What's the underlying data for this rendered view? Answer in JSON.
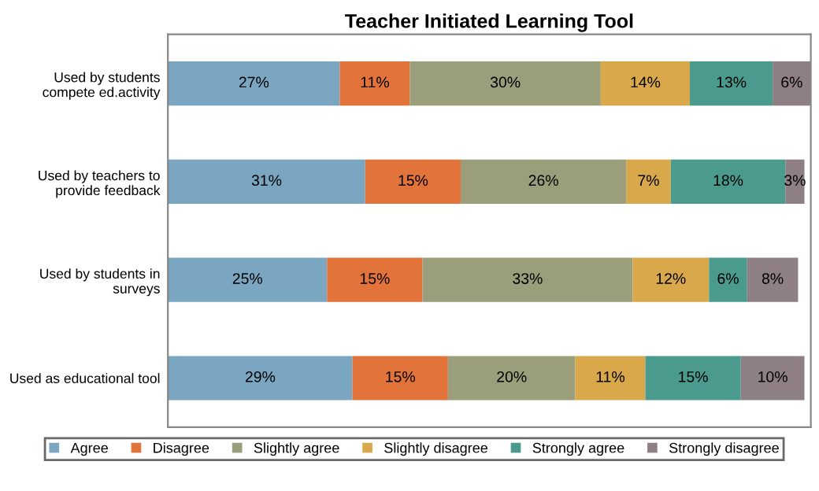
{
  "chart_data": {
    "type": "bar",
    "orientation": "horizontal",
    "stacked": true,
    "title": "Teacher Initiated Learning Tool",
    "categories": [
      "Used by students\ncompete ed.activity",
      "Used by teachers to\nprovide feedback",
      "Used by students in\nsurveys",
      "Used as educational tool"
    ],
    "series": [
      {
        "name": "Agree",
        "color": "#7aa6c2",
        "values": [
          27,
          31,
          25,
          29
        ],
        "value_labels": [
          "27%",
          "31%",
          "25%",
          "29%"
        ]
      },
      {
        "name": "Disagree",
        "color": "#e2733a",
        "values": [
          11,
          15,
          15,
          15
        ],
        "value_labels": [
          "11%",
          "15%",
          "15%",
          "15%"
        ]
      },
      {
        "name": "Slightly agree",
        "color": "#9a9e7a",
        "values": [
          30,
          26,
          33,
          20
        ],
        "value_labels": [
          "30%",
          "26%",
          "33%",
          "20%"
        ]
      },
      {
        "name": "Slightly disagree",
        "color": "#d9a84a",
        "values": [
          14,
          7,
          12,
          11
        ],
        "value_labels": [
          "14%",
          "7%",
          "12%",
          "11%"
        ]
      },
      {
        "name": "Strongly agree",
        "color": "#4a9a8e",
        "values": [
          13,
          18,
          6,
          15
        ],
        "value_labels": [
          "13%",
          "18%",
          "6%",
          "15%"
        ]
      },
      {
        "name": "Strongly disagree",
        "color": "#8e7f84",
        "values": [
          6,
          3,
          8,
          10
        ],
        "value_labels": [
          "6%",
          "3%",
          "8%",
          "10%"
        ]
      }
    ],
    "legend": "bottom",
    "tick_labels": "y",
    "grid": false
  }
}
